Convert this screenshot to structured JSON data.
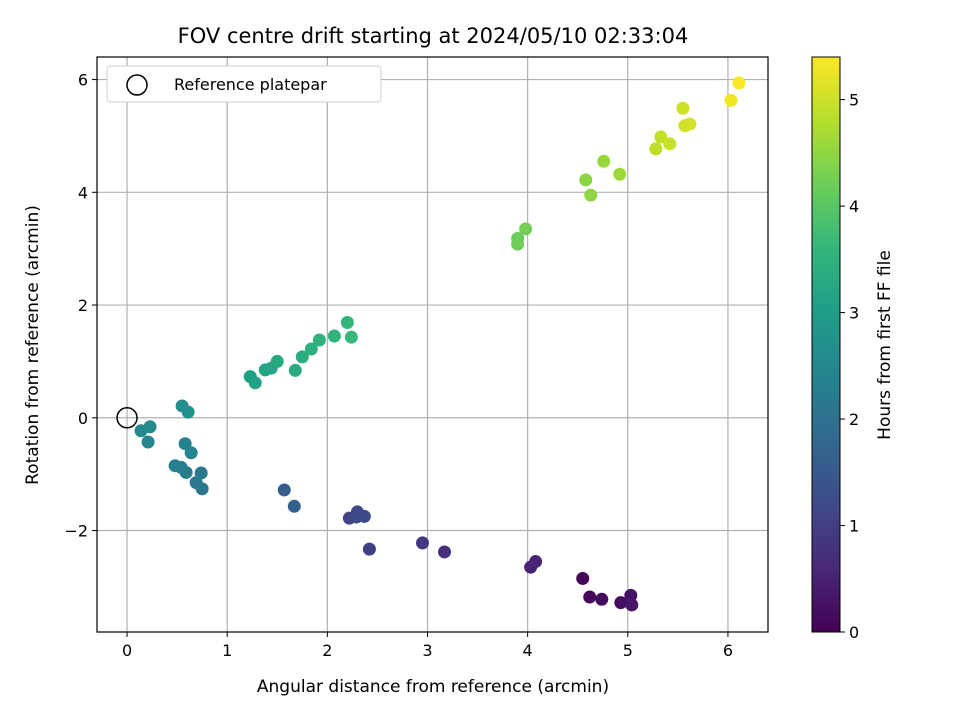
{
  "chart_data": {
    "type": "scatter",
    "title": "FOV centre drift starting at 2024/05/10 02:33:04",
    "xlabel": "Angular distance from reference (arcmin)",
    "ylabel": "Rotation from reference (arcmin)",
    "xlim": [
      -0.3,
      6.4
    ],
    "ylim": [
      -3.8,
      6.4
    ],
    "xticks": [
      0,
      1,
      2,
      3,
      4,
      5,
      6
    ],
    "yticks": [
      -2,
      0,
      2,
      4,
      6
    ],
    "grid": true,
    "legend": {
      "placement": "top-left",
      "entries": [
        "Reference platepar"
      ]
    },
    "reference_point": {
      "x": 0,
      "y": 0,
      "label": "Reference platepar"
    },
    "colorbar": {
      "label": "Hours from first FF file",
      "range": [
        0,
        5.4
      ],
      "ticks": [
        0,
        1,
        2,
        3,
        4,
        5
      ],
      "colormap": "viridis"
    },
    "points": [
      {
        "x": 4.55,
        "y": -2.85,
        "t": 0.05
      },
      {
        "x": 4.62,
        "y": -3.18,
        "t": 0.1
      },
      {
        "x": 4.74,
        "y": -3.22,
        "t": 0.15
      },
      {
        "x": 4.93,
        "y": -3.28,
        "t": 0.2
      },
      {
        "x": 5.03,
        "y": -3.15,
        "t": 0.25
      },
      {
        "x": 5.04,
        "y": -3.32,
        "t": 0.3
      },
      {
        "x": 4.03,
        "y": -2.65,
        "t": 0.5
      },
      {
        "x": 4.08,
        "y": -2.55,
        "t": 0.55
      },
      {
        "x": 3.17,
        "y": -2.38,
        "t": 0.75
      },
      {
        "x": 2.95,
        "y": -2.22,
        "t": 0.85
      },
      {
        "x": 2.42,
        "y": -2.33,
        "t": 1.0
      },
      {
        "x": 2.22,
        "y": -1.78,
        "t": 1.1
      },
      {
        "x": 2.3,
        "y": -1.67,
        "t": 1.15
      },
      {
        "x": 2.29,
        "y": -1.76,
        "t": 1.2
      },
      {
        "x": 2.37,
        "y": -1.75,
        "t": 1.25
      },
      {
        "x": 1.57,
        "y": -1.28,
        "t": 1.6
      },
      {
        "x": 1.67,
        "y": -1.57,
        "t": 1.65
      },
      {
        "x": 0.75,
        "y": -1.26,
        "t": 2.1
      },
      {
        "x": 0.74,
        "y": -0.98,
        "t": 2.15
      },
      {
        "x": 0.69,
        "y": -1.15,
        "t": 2.2
      },
      {
        "x": 0.59,
        "y": -0.97,
        "t": 2.25
      },
      {
        "x": 0.54,
        "y": -0.88,
        "t": 2.3
      },
      {
        "x": 0.48,
        "y": -0.85,
        "t": 2.35
      },
      {
        "x": 0.58,
        "y": -0.46,
        "t": 2.4
      },
      {
        "x": 0.64,
        "y": -0.62,
        "t": 2.45
      },
      {
        "x": 0.21,
        "y": -0.43,
        "t": 2.5
      },
      {
        "x": 0.14,
        "y": -0.23,
        "t": 2.55
      },
      {
        "x": 0.23,
        "y": -0.16,
        "t": 2.6
      },
      {
        "x": 0.55,
        "y": 0.21,
        "t": 2.7
      },
      {
        "x": 0.61,
        "y": 0.1,
        "t": 2.75
      },
      {
        "x": 1.23,
        "y": 0.73,
        "t": 3.05
      },
      {
        "x": 1.28,
        "y": 0.62,
        "t": 3.1
      },
      {
        "x": 1.38,
        "y": 0.85,
        "t": 3.15
      },
      {
        "x": 1.44,
        "y": 0.88,
        "t": 3.2
      },
      {
        "x": 1.5,
        "y": 1.0,
        "t": 3.25
      },
      {
        "x": 1.68,
        "y": 0.84,
        "t": 3.3
      },
      {
        "x": 1.75,
        "y": 1.08,
        "t": 3.35
      },
      {
        "x": 1.84,
        "y": 1.22,
        "t": 3.4
      },
      {
        "x": 1.92,
        "y": 1.38,
        "t": 3.45
      },
      {
        "x": 2.07,
        "y": 1.45,
        "t": 3.5
      },
      {
        "x": 2.2,
        "y": 1.69,
        "t": 3.55
      },
      {
        "x": 2.24,
        "y": 1.43,
        "t": 3.6
      },
      {
        "x": 3.9,
        "y": 3.18,
        "t": 4.15
      },
      {
        "x": 3.9,
        "y": 3.08,
        "t": 4.2
      },
      {
        "x": 3.98,
        "y": 3.35,
        "t": 4.25
      },
      {
        "x": 4.58,
        "y": 4.22,
        "t": 4.45
      },
      {
        "x": 4.63,
        "y": 3.95,
        "t": 4.5
      },
      {
        "x": 4.76,
        "y": 4.55,
        "t": 4.55
      },
      {
        "x": 4.92,
        "y": 4.32,
        "t": 4.6
      },
      {
        "x": 5.28,
        "y": 4.77,
        "t": 4.85
      },
      {
        "x": 5.33,
        "y": 4.98,
        "t": 4.9
      },
      {
        "x": 5.42,
        "y": 4.86,
        "t": 4.95
      },
      {
        "x": 5.55,
        "y": 5.49,
        "t": 5.0
      },
      {
        "x": 5.57,
        "y": 5.18,
        "t": 5.03
      },
      {
        "x": 5.62,
        "y": 5.21,
        "t": 5.05
      },
      {
        "x": 6.03,
        "y": 5.63,
        "t": 5.3
      },
      {
        "x": 6.11,
        "y": 5.94,
        "t": 5.38
      }
    ]
  }
}
